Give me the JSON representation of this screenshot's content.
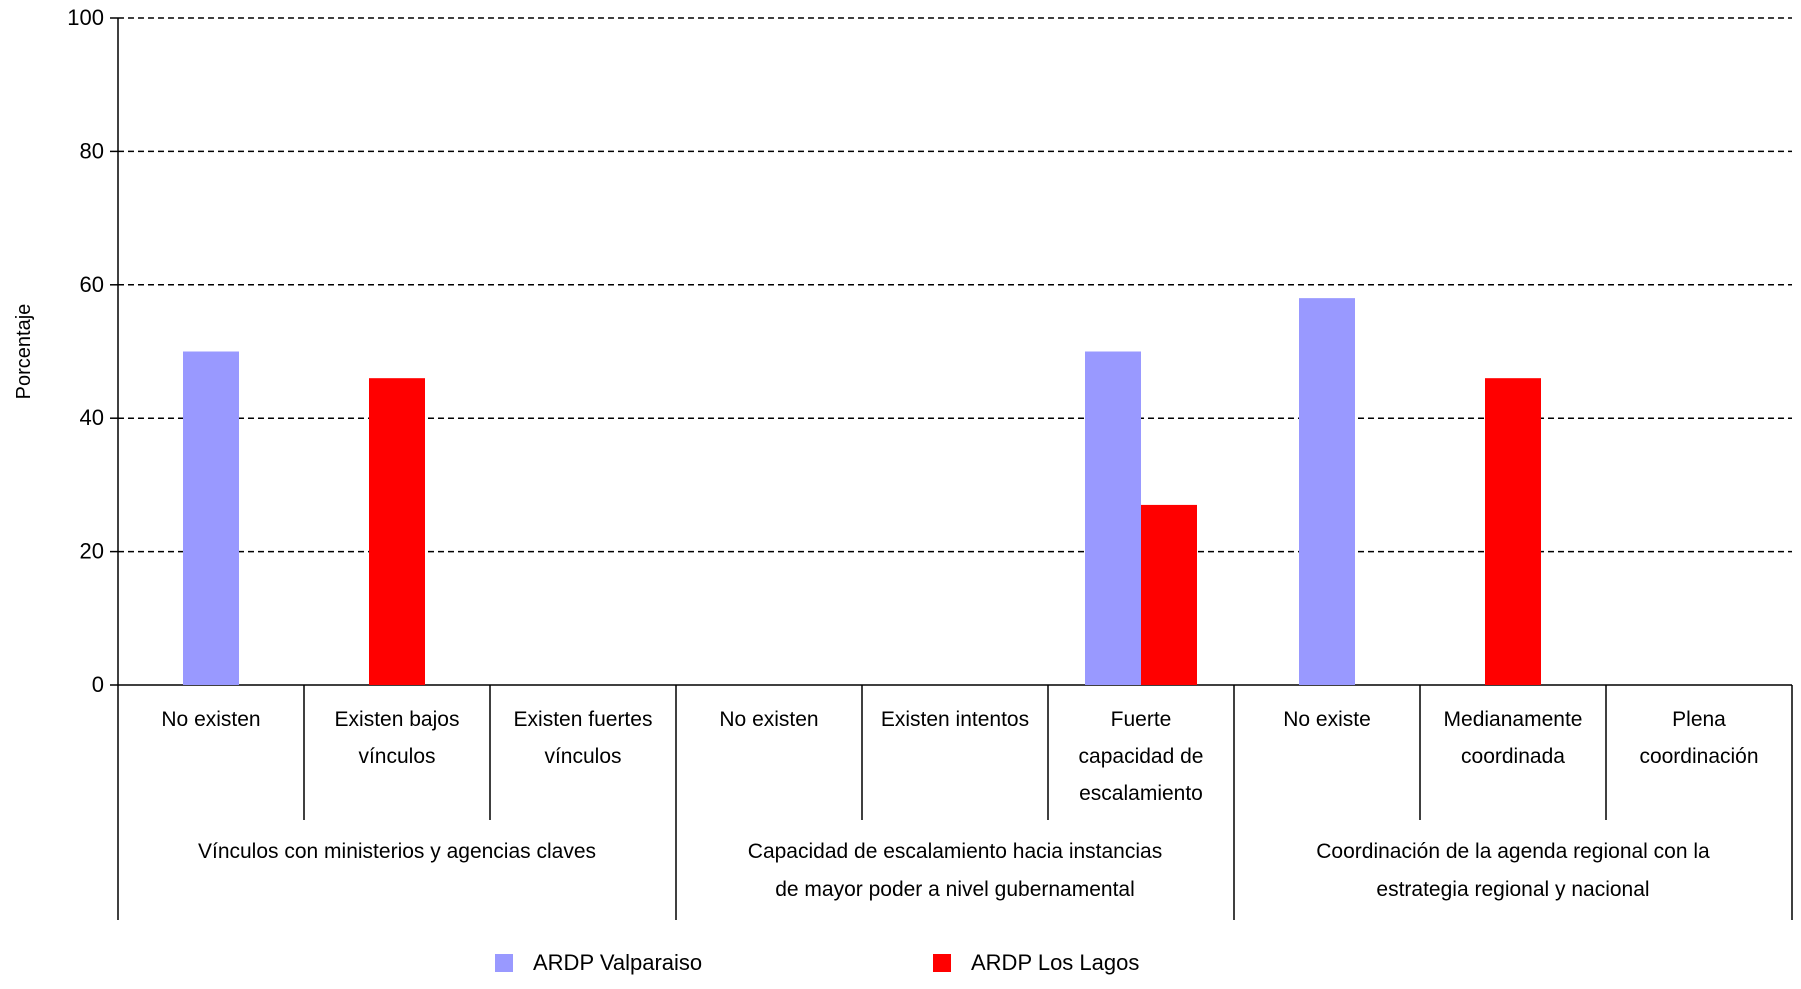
{
  "chart_data": {
    "type": "bar",
    "ylabel": "Porcentaje",
    "ylim": [
      0,
      100
    ],
    "yticks": [
      0,
      20,
      40,
      60,
      80,
      100
    ],
    "grid": true,
    "categories": [
      [
        "No existen"
      ],
      [
        "Existen bajos",
        "vínculos"
      ],
      [
        "Existen fuertes",
        "vínculos"
      ],
      [
        "No existen"
      ],
      [
        "Existen intentos"
      ],
      [
        "Fuerte",
        "capacidad de",
        "escalamiento"
      ],
      [
        "No existe"
      ],
      [
        "Medianamente",
        "coordinada"
      ],
      [
        "Plena",
        "coordinación"
      ]
    ],
    "groups": [
      {
        "lines": [
          "Vínculos con ministerios y agencias claves"
        ],
        "span": [
          0,
          3
        ]
      },
      {
        "lines": [
          "Capacidad de escalamiento hacia instancias",
          "de mayor poder a nivel  gubernamental"
        ],
        "span": [
          3,
          6
        ]
      },
      {
        "lines": [
          "Coordinación de la agenda regional con la",
          "estrategia regional y nacional"
        ],
        "span": [
          6,
          9
        ]
      }
    ],
    "series": [
      {
        "name": "ARDP Valparaiso",
        "color": "#9999ff",
        "values": [
          50,
          0,
          0,
          0,
          0,
          50,
          58,
          0,
          0
        ]
      },
      {
        "name": "ARDP Los Lagos",
        "color": "#ff0000",
        "values": [
          0,
          46,
          0,
          0,
          0,
          27,
          0,
          46,
          0
        ]
      }
    ],
    "legend_position": "bottom"
  }
}
